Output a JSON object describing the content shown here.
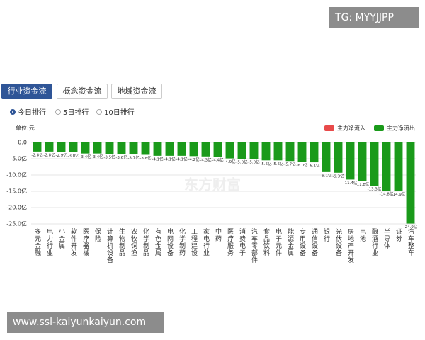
{
  "watermark": {
    "top": "TG: MYYJJPP",
    "center": "东方财富",
    "bottom": "www.ssl-kaiyunkaiyun.com"
  },
  "tabs": [
    "行业资金流",
    "概念资金流",
    "地域资金流"
  ],
  "radios": [
    "今日排行",
    "5日排行",
    "10日排行"
  ],
  "chart_data": {
    "type": "bar",
    "unit": "单位:元",
    "categories": [
      "多元金融",
      "电力行业",
      "小金属",
      "软件开发",
      "医疗器械",
      "保险",
      "计算机设备",
      "生物制品",
      "农牧饲渔",
      "化学制品",
      "有色金属",
      "电网设备",
      "化学制药",
      "工程建设",
      "家电行业",
      "中药",
      "医疗服务",
      "消费电子",
      "汽车零部件",
      "食品饮料",
      "电子元件",
      "能源金属",
      "专用设备",
      "通信设备",
      "银行",
      "光伏设备",
      "房地产开发",
      "电池",
      "酿酒行业",
      "半导体",
      "证券",
      "汽车整车"
    ],
    "series": [
      {
        "name": "主力净流入",
        "color": "#e84a4a",
        "values": [
          null,
          null,
          null,
          null,
          null,
          null,
          null,
          null,
          null,
          null,
          null,
          null,
          null,
          null,
          null,
          null,
          null,
          null,
          null,
          null,
          null,
          null,
          null,
          null,
          null,
          null,
          null,
          null,
          null,
          null,
          null,
          null
        ]
      },
      {
        "name": "主力净流出",
        "color": "#1a9a1a",
        "values": [
          -2.8,
          -2.8,
          -2.9,
          -3.0,
          -3.4,
          -3.4,
          -3.5,
          -3.6,
          -3.7,
          -3.8,
          -4.1,
          -4.1,
          -4.1,
          -4.2,
          -4.3,
          -4.4,
          -4.9,
          -5.0,
          -5.0,
          -5.5,
          -5.5,
          -5.7,
          -6.0,
          -6.1,
          -9.1,
          -9.3,
          -11.4,
          -11.8,
          -13.3,
          -14.8,
          -14.9,
          -24.9
        ],
        "value_labels": [
          "-2.8亿",
          "-2.8亿",
          "-2.9亿",
          "-3.0亿",
          "-3.4亿",
          "-3.4亿",
          "-3.5亿",
          "-3.6亿",
          "-3.7亿",
          "-3.8亿",
          "-4.1亿",
          "-4.1亿",
          "-4.1亿",
          "-4.2亿",
          "-4.3亿",
          "-4.4亿",
          "-4.9亿",
          "-5.0亿",
          "-5.0亿",
          "-5.5亿",
          "-5.5亿",
          "-5.7亿",
          "-6.0亿",
          "-6.1亿",
          "-9.1亿",
          "-9.3亿",
          "-11.4亿",
          "-11.8亿",
          "-13.3亿",
          "-14.8亿",
          "-14.9亿",
          "-24.9亿"
        ]
      }
    ],
    "ylim": [
      -25,
      0
    ],
    "yticks": [
      {
        "value": 0,
        "label": "0.0"
      },
      {
        "value": -5,
        "label": "-5.0亿"
      },
      {
        "value": -10,
        "label": "-10.0亿"
      },
      {
        "value": -15,
        "label": "-15.0亿"
      },
      {
        "value": -20,
        "label": "-20.0亿"
      },
      {
        "value": -25,
        "label": "-25.0亿"
      }
    ],
    "grid": true,
    "legend": "top-right"
  }
}
